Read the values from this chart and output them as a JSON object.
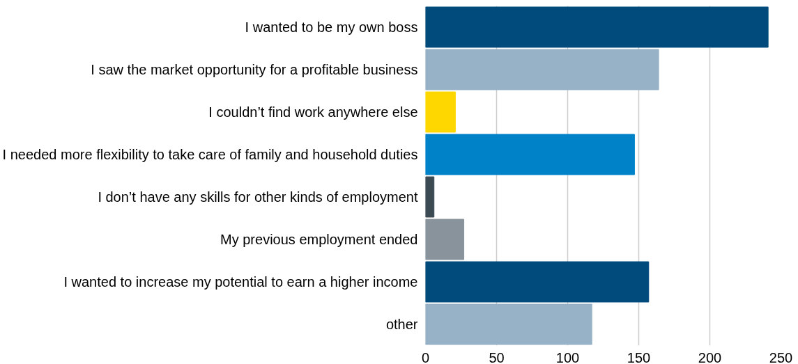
{
  "chart_data": {
    "type": "bar",
    "orientation": "horizontal",
    "categories": [
      "I wanted to be my own boss",
      "I saw the market opportunity for a profitable business",
      "I couldn’t find work anywhere else",
      "I needed more flexibility to take care of family and household duties",
      "I don’t have any skills for other kinds of employment",
      "My previous employment ended",
      "I wanted to increase my potential to earn a higher income",
      "other"
    ],
    "values": [
      241,
      164,
      21,
      147,
      6,
      27,
      157,
      117
    ],
    "colors": [
      "#004a7c",
      "#97b1c6",
      "#ffd700",
      "#0082c8",
      "#3c4a54",
      "#89939c",
      "#004a7c",
      "#97b1c6"
    ],
    "xlim": [
      0,
      250
    ],
    "xticks": [
      0,
      50,
      100,
      150,
      200,
      250
    ],
    "grid": "x"
  }
}
